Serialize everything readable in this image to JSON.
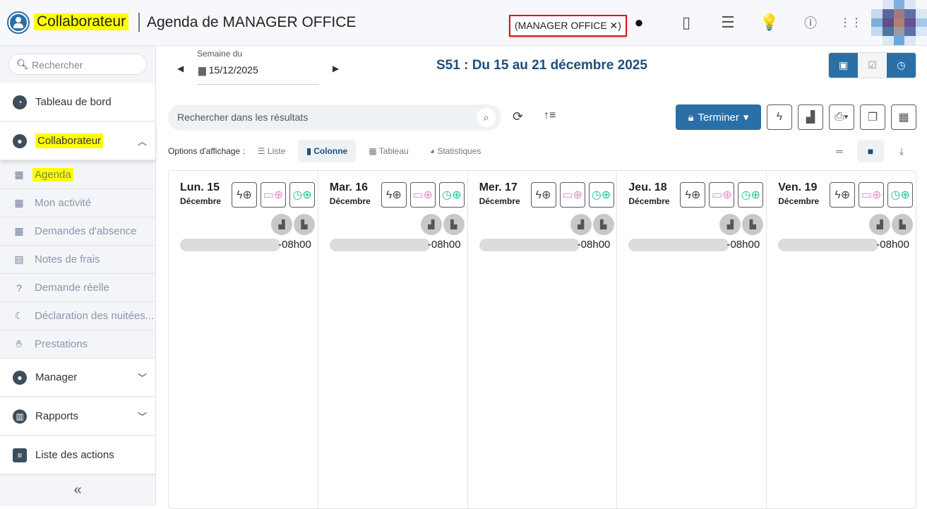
{
  "header": {
    "app": "Collaborateur",
    "title": "Agenda de MANAGER OFFICE",
    "badge": "(MANAGER OFFICE ✕)",
    "icons": [
      "user-icon",
      "phone-icon",
      "sliders-icon",
      "lightbulb-icon",
      "help-icon",
      "apps-grid-icon"
    ]
  },
  "sidebar": {
    "search_placeholder": "Rechercher",
    "dashboard": "Tableau de bord",
    "collaborateur": "Collaborateur",
    "sub": [
      {
        "label": "Agenda",
        "icon": "calendar-clock-icon"
      },
      {
        "label": "Mon activité",
        "icon": "calendar-user-icon"
      },
      {
        "label": "Demandes d'absence",
        "icon": "calendar-x-icon"
      },
      {
        "label": "Notes de frais",
        "icon": "receipt-icon"
      },
      {
        "label": "Demande réelle",
        "icon": "chat-question-icon"
      },
      {
        "label": "Déclaration des nuitées...",
        "icon": "moon-icon"
      },
      {
        "label": "Prestations",
        "icon": "hand-icon"
      }
    ],
    "manager": "Manager",
    "rapports": "Rapports",
    "actions": "Liste des actions",
    "collapse": "«"
  },
  "week": {
    "label": "Semaine du",
    "date": "15/12/2025",
    "title": "S51 : Du 15 au 21 décembre 2025"
  },
  "toolbar": {
    "search_placeholder": "Rechercher dans les résultats",
    "terminer": "Terminer",
    "options_label": "Options d'affichage :",
    "views": [
      "Liste",
      "Colonne",
      "Tableau",
      "Statistiques"
    ],
    "active_view": "Colonne"
  },
  "colors": {
    "primary": "#2a6fa6",
    "highlight": "#ffff00"
  },
  "days": [
    {
      "name": "Lun. 15",
      "month": "Décembre",
      "duration": "-08h00"
    },
    {
      "name": "Mar. 16",
      "month": "Décembre",
      "duration": "-08h00"
    },
    {
      "name": "Mer. 17",
      "month": "Décembre",
      "duration": "-08h00"
    },
    {
      "name": "Jeu. 18",
      "month": "Décembre",
      "duration": "-08h00"
    },
    {
      "name": "Ven. 19",
      "month": "Décembre",
      "duration": "-08h00"
    }
  ]
}
